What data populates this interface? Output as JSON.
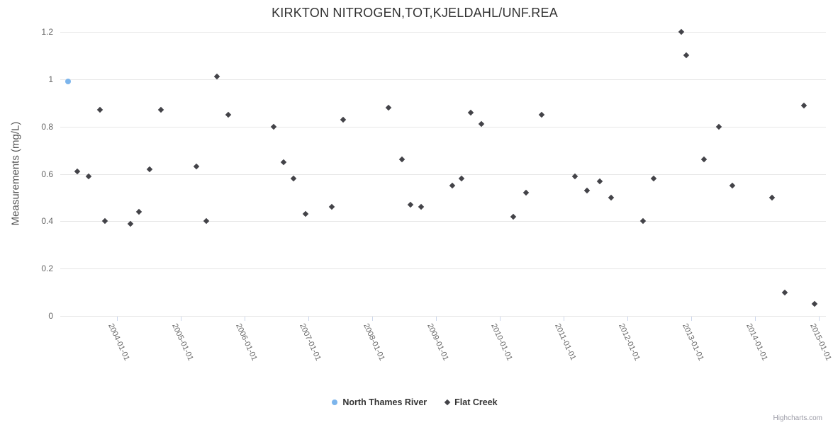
{
  "chart_data": {
    "type": "scatter",
    "title": "KIRKTON NITROGEN,TOT,KJELDAHL/UNF.REA",
    "xlabel": "",
    "ylabel": "Measurements (mg/L)",
    "ylim": [
      0,
      1.2
    ],
    "xlim": [
      2003.11,
      2015.11
    ],
    "y_ticks": [
      0,
      0.2,
      0.4,
      0.6,
      0.8,
      1,
      1.2
    ],
    "x_ticks": [
      {
        "value": 2004,
        "label": "2004-01-01"
      },
      {
        "value": 2005,
        "label": "2005-01-01"
      },
      {
        "value": 2006,
        "label": "2006-01-01"
      },
      {
        "value": 2007,
        "label": "2007-01-01"
      },
      {
        "value": 2008,
        "label": "2008-01-01"
      },
      {
        "value": 2009,
        "label": "2009-01-01"
      },
      {
        "value": 2010,
        "label": "2010-01-01"
      },
      {
        "value": 2011,
        "label": "2011-01-01"
      },
      {
        "value": 2012,
        "label": "2012-01-01"
      },
      {
        "value": 2013,
        "label": "2013-01-01"
      },
      {
        "value": 2014,
        "label": "2014-01-01"
      },
      {
        "value": 2015,
        "label": "2015-01-01"
      }
    ],
    "grid": "horizontal-only",
    "legend_position": "bottom-center",
    "credit": "Highcharts.com",
    "colors": {
      "grid": "#e6e6e6",
      "axis_line": "#ccd6eb",
      "title_text": "#333333",
      "axis_label_text": "#666666",
      "legend_text": "#333333",
      "credit_text": "#9a9aa5"
    },
    "series": [
      {
        "name": "North Thames River",
        "marker": "circle",
        "color": "#7cb5ec",
        "points": [
          [
            2003.23,
            0.99
          ]
        ]
      },
      {
        "name": "Flat Creek",
        "marker": "diamond",
        "color": "#434348",
        "points": [
          [
            2003.38,
            0.61
          ],
          [
            2003.55,
            0.59
          ],
          [
            2003.73,
            0.87
          ],
          [
            2003.81,
            0.4
          ],
          [
            2004.21,
            0.39
          ],
          [
            2004.34,
            0.44
          ],
          [
            2004.51,
            0.62
          ],
          [
            2004.69,
            0.87
          ],
          [
            2005.24,
            0.63
          ],
          [
            2005.4,
            0.4
          ],
          [
            2005.56,
            1.01
          ],
          [
            2005.74,
            0.85
          ],
          [
            2006.45,
            0.8
          ],
          [
            2006.61,
            0.65
          ],
          [
            2006.77,
            0.58
          ],
          [
            2006.95,
            0.43
          ],
          [
            2007.36,
            0.46
          ],
          [
            2007.54,
            0.83
          ],
          [
            2008.25,
            0.88
          ],
          [
            2008.47,
            0.66
          ],
          [
            2008.6,
            0.47
          ],
          [
            2008.77,
            0.46
          ],
          [
            2009.25,
            0.55
          ],
          [
            2009.4,
            0.58
          ],
          [
            2009.54,
            0.86
          ],
          [
            2009.71,
            0.81
          ],
          [
            2010.21,
            0.42
          ],
          [
            2010.41,
            0.52
          ],
          [
            2010.65,
            0.85
          ],
          [
            2011.18,
            0.59
          ],
          [
            2011.37,
            0.53
          ],
          [
            2011.57,
            0.57
          ],
          [
            2011.74,
            0.5
          ],
          [
            2012.24,
            0.4
          ],
          [
            2012.41,
            0.58
          ],
          [
            2012.84,
            1.2
          ],
          [
            2012.92,
            1.1
          ],
          [
            2013.2,
            0.66
          ],
          [
            2013.43,
            0.8
          ],
          [
            2013.64,
            0.55
          ],
          [
            2014.26,
            0.5
          ],
          [
            2014.46,
            0.1
          ],
          [
            2014.77,
            0.89
          ],
          [
            2014.93,
            0.05
          ]
        ]
      }
    ]
  }
}
